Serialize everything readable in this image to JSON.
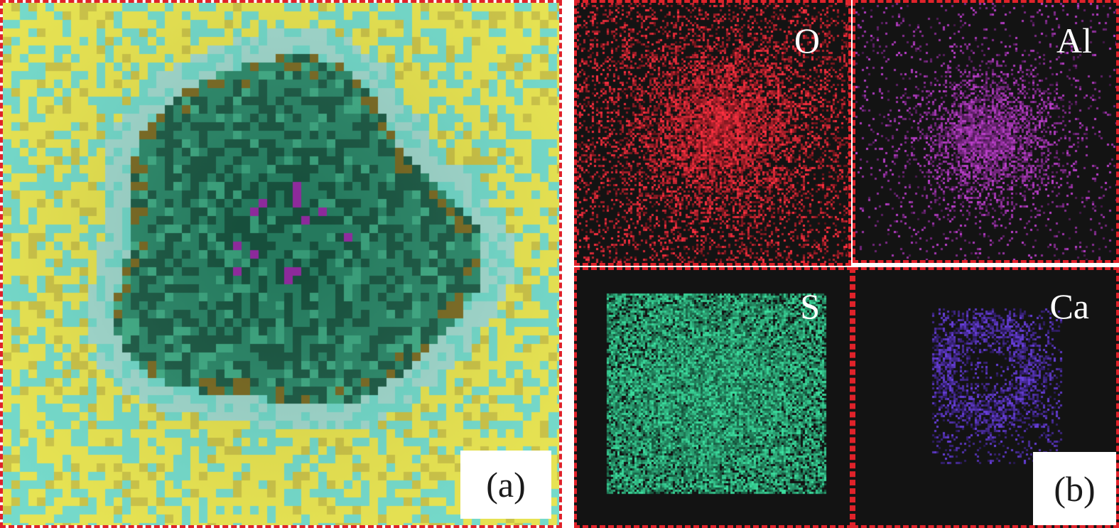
{
  "panel_a": {
    "label": "(a)",
    "colors": {
      "matrix": "#e6e24a",
      "matrix_alt": "#6ed8c8",
      "inclusion": "#2a8a6a",
      "inclusion_dark": "#1a5a44",
      "alumina": "#a030b0",
      "halo": "#9ed8cc"
    }
  },
  "panel_b": {
    "label": "(b)",
    "maps": [
      {
        "element": "O",
        "color": "#ff3040"
      },
      {
        "element": "Al",
        "color": "#c040d0"
      },
      {
        "element": "S",
        "color": "#3ce0a0"
      },
      {
        "element": "Ca",
        "color": "#6a40e0"
      }
    ],
    "background": "#131313"
  },
  "frame_color": "#e0222a"
}
